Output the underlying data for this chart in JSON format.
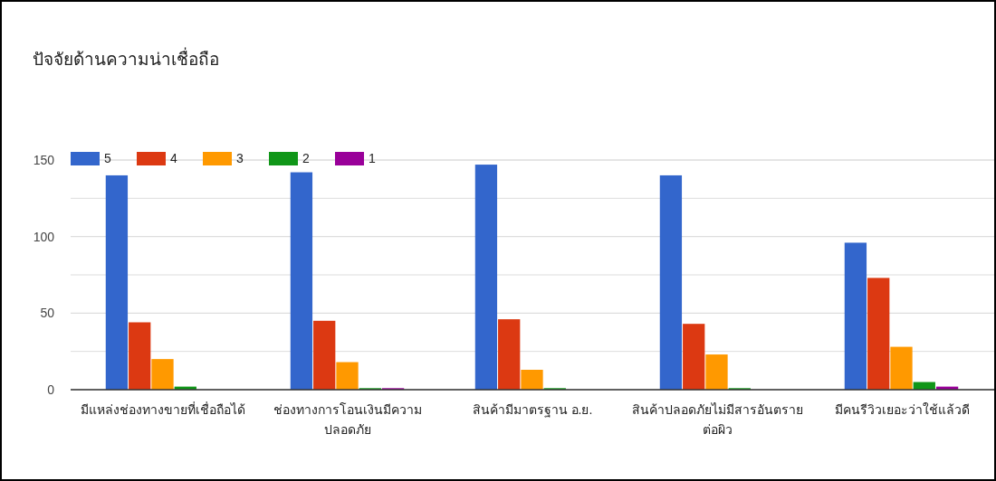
{
  "chart_data": {
    "type": "bar",
    "title": "ปัจจัยด้านความน่าเชื่อถือ",
    "categories": [
      "มีแหล่งช่องทางขายที่เชื่อถือได้",
      "ช่องทางการโอนเงินมีความปลอดภัย",
      "สินค้ามีมาตรฐาน อ.ย.",
      "สินค้าปลอดภัยไม่มีสารอันตรายต่อผิว",
      "มีคนรีวิวเยอะว่าใช้แล้วดี"
    ],
    "series": [
      {
        "name": "5",
        "color": "#3366cc",
        "values": [
          140,
          142,
          147,
          140,
          96
        ]
      },
      {
        "name": "4",
        "color": "#dc3912",
        "values": [
          44,
          45,
          46,
          43,
          73
        ]
      },
      {
        "name": "3",
        "color": "#ff9900",
        "values": [
          20,
          18,
          13,
          23,
          28
        ]
      },
      {
        "name": "2",
        "color": "#109618",
        "values": [
          2,
          1,
          1,
          1,
          5
        ]
      },
      {
        "name": "1",
        "color": "#990099",
        "values": [
          0,
          1,
          0,
          0,
          2
        ]
      }
    ],
    "ylim": [
      0,
      150
    ],
    "yticks": [
      0,
      {
        "value": 25,
        "label": null
      },
      50,
      {
        "value": 75,
        "label": null
      },
      100,
      {
        "value": 125,
        "label": null
      },
      150
    ],
    "grid": "y",
    "legend": "top left"
  }
}
